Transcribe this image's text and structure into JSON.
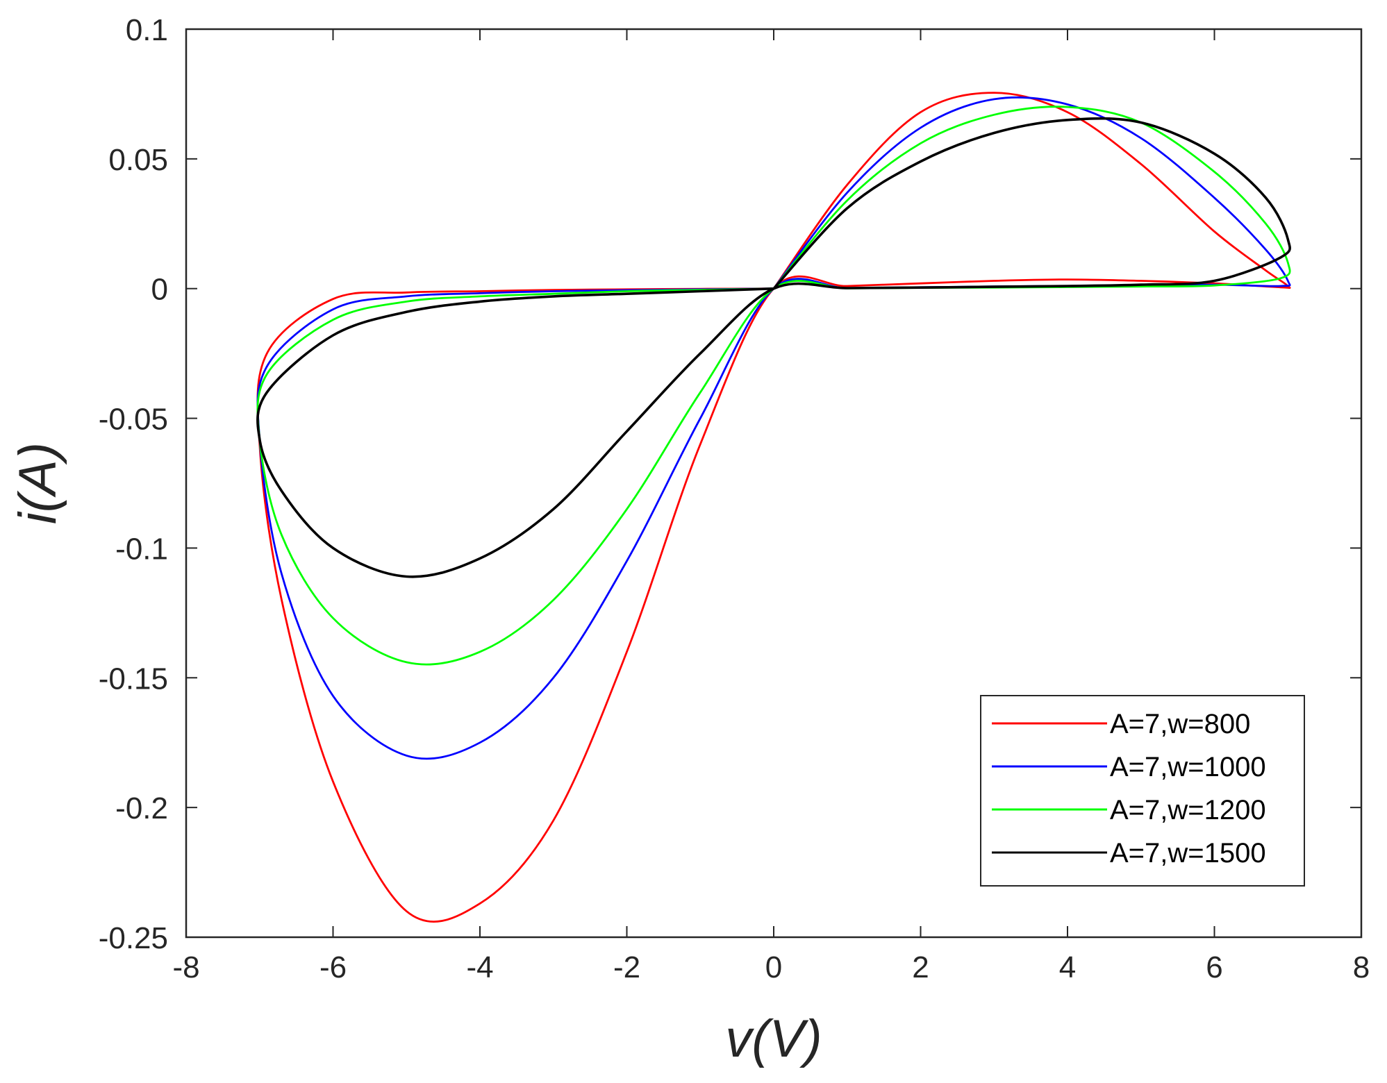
{
  "chart_data": {
    "type": "line",
    "title": "",
    "xlabel": "v(V)",
    "ylabel": "i(A)",
    "xlim": [
      -8,
      8
    ],
    "ylim": [
      -0.25,
      0.1
    ],
    "xticks": [
      -8,
      -6,
      -4,
      -2,
      0,
      2,
      4,
      6,
      8
    ],
    "xtick_labels": [
      "-8",
      "-6",
      "-4",
      "-2",
      "0",
      "2",
      "4",
      "6",
      "8"
    ],
    "yticks": [
      0.1,
      0.05,
      0,
      -0.05,
      -0.1,
      -0.15,
      -0.2,
      -0.25
    ],
    "ytick_labels": [
      "0.1",
      "0.05",
      "0",
      "-0.05",
      "-0.1",
      "-0.15",
      "-0.2",
      "-0.25"
    ],
    "grid": false,
    "legend_position": "bottom-right",
    "series": [
      {
        "name": "A=7,w=800",
        "color": "#ff0000",
        "x": [
          0,
          1,
          2,
          3,
          4,
          5,
          6,
          6.7,
          7,
          6.9,
          6,
          5,
          4,
          3,
          2,
          1,
          0,
          -1,
          -2,
          -3,
          -4,
          -5,
          -6,
          -6.7,
          -7,
          -6.9,
          -6,
          -5,
          -4,
          -3,
          -2,
          -1,
          0
        ],
        "y": [
          0,
          0.04,
          0.068,
          0.0755,
          0.068,
          0.048,
          0.022,
          0.007,
          0.001,
          0.0005,
          0.002,
          0.003,
          0.0035,
          0.003,
          0.002,
          0.001,
          0,
          -0.06,
          -0.14,
          -0.205,
          -0.237,
          -0.24,
          -0.19,
          -0.12,
          -0.06,
          -0.025,
          -0.004,
          -0.0015,
          -0.001,
          -0.0005,
          -0.0003,
          -0.0001,
          0
        ]
      },
      {
        "name": "A=7,w=1000",
        "color": "#0000ff",
        "x": [
          0,
          1,
          2,
          3,
          4,
          5,
          6,
          6.7,
          7,
          6.9,
          6,
          5,
          4,
          3,
          2,
          1,
          0,
          -1,
          -2,
          -3,
          -4,
          -5,
          -6,
          -6.7,
          -7,
          -6.9,
          -6,
          -5,
          -4,
          -3,
          -2,
          -1,
          0
        ],
        "y": [
          0,
          0.037,
          0.062,
          0.073,
          0.071,
          0.058,
          0.035,
          0.015,
          0.003,
          0.001,
          0.0015,
          0.0012,
          0.001,
          0.0008,
          0.0005,
          0.0002,
          0,
          -0.05,
          -0.105,
          -0.15,
          -0.175,
          -0.18,
          -0.157,
          -0.11,
          -0.058,
          -0.03,
          -0.008,
          -0.003,
          -0.0018,
          -0.001,
          -0.0006,
          -0.0003,
          0
        ]
      },
      {
        "name": "A=7,w=1200",
        "color": "#00ff00",
        "x": [
          0,
          1,
          2,
          3,
          4,
          5,
          6,
          6.7,
          7,
          6.9,
          6,
          5,
          4,
          3,
          2,
          1,
          0,
          -1,
          -2,
          -3,
          -4,
          -5,
          -6,
          -6.7,
          -7,
          -6.9,
          -6,
          -5,
          -4,
          -3,
          -2,
          -1,
          0
        ],
        "y": [
          0,
          0.034,
          0.056,
          0.067,
          0.07,
          0.064,
          0.045,
          0.025,
          0.01,
          0.004,
          0.0012,
          0.0008,
          0.0006,
          0.0004,
          0.0003,
          0.0001,
          0,
          -0.04,
          -0.085,
          -0.12,
          -0.14,
          -0.144,
          -0.127,
          -0.095,
          -0.058,
          -0.033,
          -0.012,
          -0.005,
          -0.003,
          -0.002,
          -0.001,
          -0.0005,
          0
        ]
      },
      {
        "name": "A=7,w=1500",
        "color": "#000000",
        "x": [
          0,
          1,
          2,
          3,
          4,
          5,
          6,
          6.7,
          7,
          6.9,
          6,
          5,
          4,
          3,
          2,
          1,
          0,
          -1,
          -2,
          -3,
          -4,
          -5,
          -6,
          -6.7,
          -7,
          -6.9,
          -6,
          -5,
          -4,
          -3,
          -2,
          -1,
          0
        ],
        "y": [
          0,
          0.031,
          0.049,
          0.06,
          0.065,
          0.064,
          0.052,
          0.035,
          0.019,
          0.012,
          0.003,
          0.0015,
          0.001,
          0.0007,
          0.0004,
          0.0002,
          0,
          -0.025,
          -0.055,
          -0.085,
          -0.104,
          -0.111,
          -0.1,
          -0.078,
          -0.058,
          -0.04,
          -0.018,
          -0.009,
          -0.005,
          -0.003,
          -0.002,
          -0.001,
          0
        ]
      }
    ]
  }
}
